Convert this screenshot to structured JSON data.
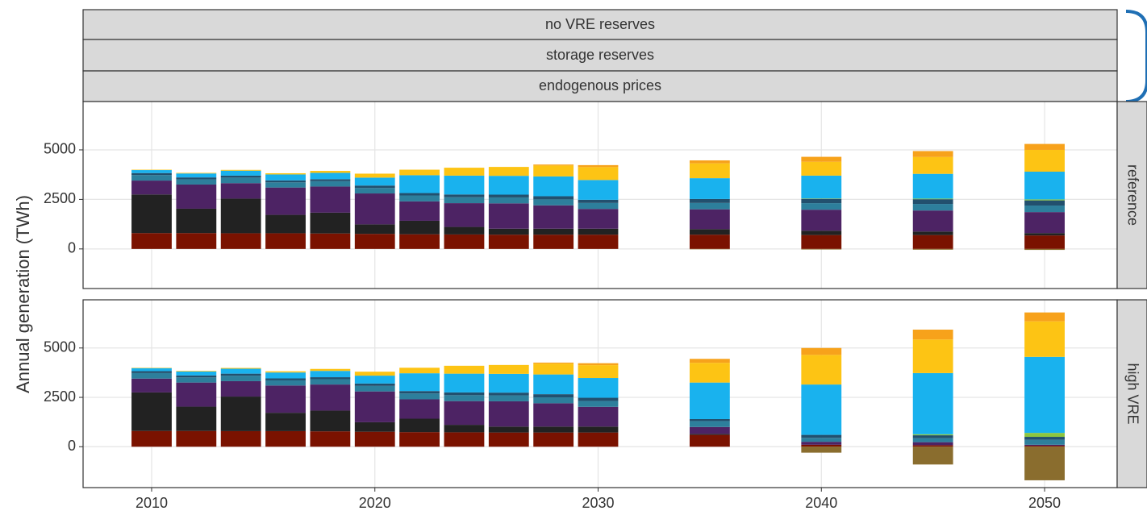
{
  "strips": [
    "no VRE reserves",
    "storage reserves",
    "endogenous prices"
  ],
  "y_label": "Annual generation (TWh)",
  "chart_data": [
    {
      "type": "bar",
      "stacked": true,
      "facet": "reference",
      "x": [
        2010,
        2012,
        2014,
        2016,
        2018,
        2020,
        2022,
        2024,
        2026,
        2028,
        2030,
        2035,
        2040,
        2045,
        2050
      ],
      "xlim": [
        2006.93,
        2053.25
      ],
      "xticks": [
        2010,
        2020,
        2030,
        2040,
        2050
      ],
      "ylim": [
        -2000,
        7440
      ],
      "yticks": [
        0,
        2500,
        5000
      ],
      "grid": true,
      "series": [
        {
          "color": "#7a1200",
          "values": [
            800,
            800,
            790,
            790,
            780,
            760,
            740,
            730,
            720,
            720,
            720,
            720,
            700,
            700,
            680
          ]
        },
        {
          "color": "#222222",
          "values": [
            1950,
            1230,
            1750,
            930,
            1050,
            480,
            680,
            380,
            300,
            300,
            300,
            280,
            220,
            180,
            120
          ]
        },
        {
          "color": "#4d2364",
          "values": [
            700,
            1220,
            780,
            1380,
            1320,
            1560,
            980,
            1200,
            1280,
            1180,
            1000,
            1000,
            1060,
            1060,
            1060
          ]
        },
        {
          "color": "#2d7f9c",
          "values": [
            280,
            260,
            280,
            260,
            270,
            280,
            300,
            300,
            300,
            300,
            300,
            320,
            330,
            330,
            330
          ]
        },
        {
          "color": "#22506e",
          "values": [
            100,
            100,
            100,
            100,
            100,
            120,
            120,
            140,
            140,
            160,
            160,
            200,
            220,
            240,
            260
          ]
        },
        {
          "color": "#8dc63f",
          "values": [
            0,
            0,
            0,
            0,
            0,
            0,
            0,
            0,
            0,
            0,
            0,
            0,
            20,
            30,
            50
          ]
        },
        {
          "color": "#19b2ee",
          "values": [
            150,
            200,
            250,
            300,
            320,
            400,
            900,
            950,
            950,
            1000,
            1000,
            1050,
            1150,
            1250,
            1400
          ]
        },
        {
          "color": "#fdc414",
          "values": [
            20,
            30,
            40,
            60,
            100,
            200,
            280,
            400,
            450,
            550,
            650,
            750,
            700,
            850,
            1100
          ]
        },
        {
          "color": "#f7a21b",
          "values": [
            0,
            0,
            0,
            0,
            0,
            0,
            0,
            0,
            0,
            50,
            100,
            150,
            250,
            300,
            300
          ]
        },
        {
          "color": "#8a6d2e",
          "values": [
            0,
            0,
            0,
            0,
            0,
            0,
            0,
            0,
            0,
            0,
            0,
            -20,
            -30,
            -40,
            -50
          ]
        }
      ]
    },
    {
      "type": "bar",
      "stacked": true,
      "facet": "high VRE",
      "x": [
        2010,
        2012,
        2014,
        2016,
        2018,
        2020,
        2022,
        2024,
        2026,
        2028,
        2030,
        2035,
        2040,
        2045,
        2050
      ],
      "xlim": [
        2006.93,
        2053.25
      ],
      "xticks": [
        2010,
        2020,
        2030,
        2040,
        2050
      ],
      "ylim": [
        -2070,
        7440
      ],
      "yticks": [
        0,
        2500,
        5000
      ],
      "grid": true,
      "series": [
        {
          "color": "#7a1200",
          "values": [
            800,
            800,
            790,
            790,
            780,
            760,
            740,
            730,
            720,
            720,
            720,
            600,
            100,
            80,
            50
          ]
        },
        {
          "color": "#222222",
          "values": [
            1950,
            1230,
            1750,
            930,
            1050,
            480,
            680,
            380,
            300,
            300,
            300,
            50,
            0,
            0,
            0
          ]
        },
        {
          "color": "#4d2364",
          "values": [
            700,
            1220,
            780,
            1380,
            1320,
            1560,
            980,
            1200,
            1280,
            1180,
            1000,
            350,
            150,
            150,
            50
          ]
        },
        {
          "color": "#2d7f9c",
          "values": [
            280,
            260,
            280,
            260,
            270,
            280,
            300,
            300,
            300,
            300,
            300,
            300,
            200,
            200,
            250
          ]
        },
        {
          "color": "#22506e",
          "values": [
            100,
            100,
            100,
            100,
            100,
            120,
            120,
            140,
            140,
            160,
            160,
            100,
            150,
            150,
            150
          ]
        },
        {
          "color": "#8dc63f",
          "values": [
            0,
            0,
            0,
            0,
            0,
            0,
            0,
            0,
            0,
            0,
            0,
            0,
            0,
            50,
            200
          ]
        },
        {
          "color": "#19b2ee",
          "values": [
            150,
            200,
            250,
            300,
            320,
            400,
            900,
            950,
            950,
            1000,
            1000,
            1850,
            2550,
            3100,
            3850
          ]
        },
        {
          "color": "#fdc414",
          "values": [
            20,
            30,
            40,
            60,
            100,
            200,
            280,
            400,
            450,
            550,
            650,
            1000,
            1500,
            1700,
            1800
          ]
        },
        {
          "color": "#f7a21b",
          "values": [
            0,
            0,
            0,
            0,
            0,
            0,
            0,
            0,
            0,
            50,
            100,
            200,
            350,
            500,
            450
          ]
        },
        {
          "color": "#8a6d2e",
          "values": [
            0,
            0,
            0,
            0,
            0,
            0,
            0,
            0,
            0,
            0,
            0,
            0,
            -300,
            -900,
            -1700
          ]
        }
      ]
    }
  ]
}
